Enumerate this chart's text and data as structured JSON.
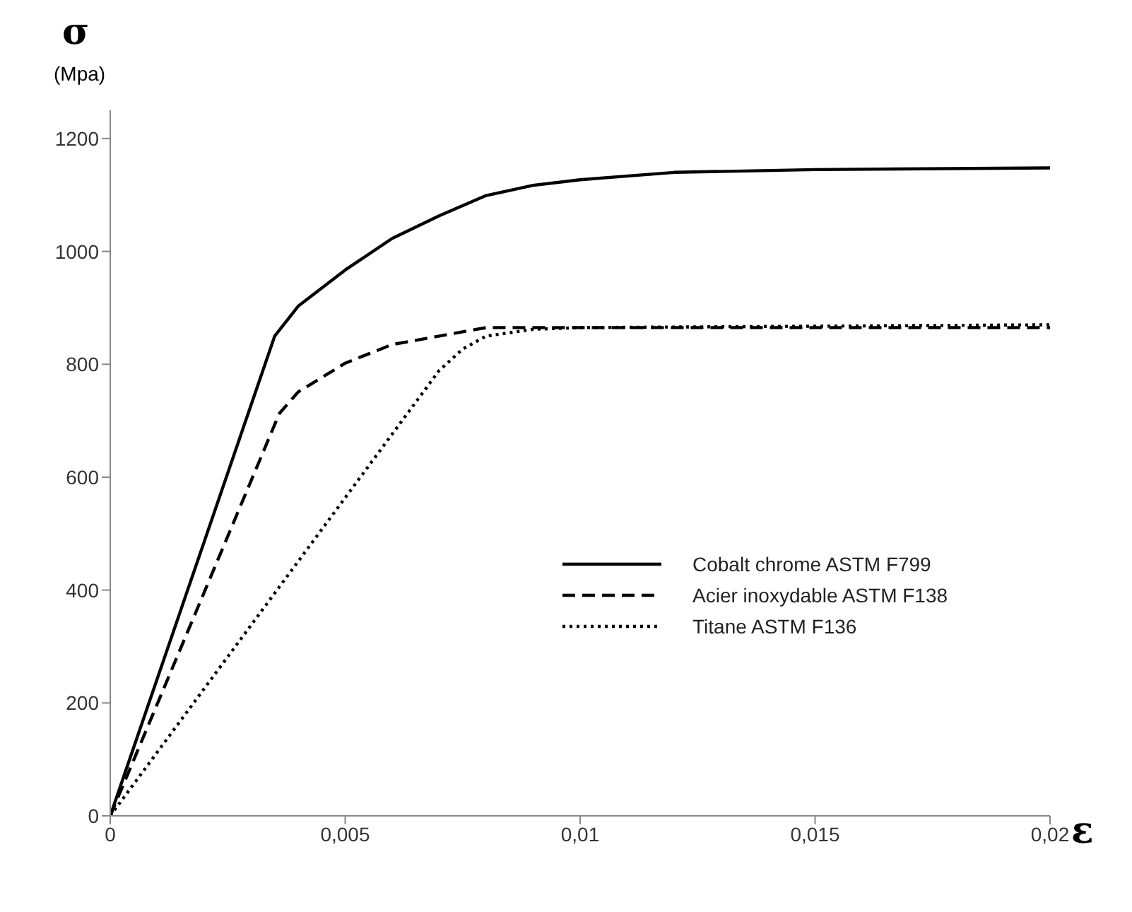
{
  "chart_data": {
    "type": "line",
    "xlabel": "ε",
    "ylabel": "σ (Mpa)",
    "xlim": [
      0,
      0.02
    ],
    "xticks": [
      0,
      {
        "value": 0.005,
        "label": "0,005"
      },
      {
        "value": 0.01,
        "label": "0,01"
      },
      {
        "value": 0.015,
        "label": "0,015"
      },
      {
        "value": 0.02,
        "label": "0,02"
      }
    ],
    "ylim": [
      0,
      1250
    ],
    "yticks": [
      0,
      200,
      400,
      600,
      800,
      1000,
      1200
    ],
    "grid": false,
    "legend": "right",
    "marker": "none",
    "series": [
      {
        "name": "Cobalt chrome ASTM F799",
        "color": "#000000",
        "line_style": "solid",
        "x": [
          0,
          0.0035,
          0.004,
          0.005,
          0.006,
          0.007,
          0.008,
          0.009,
          0.01,
          0.012,
          0.015,
          0.02
        ],
        "values": [
          0,
          850,
          903,
          967,
          1023,
          1063,
          1099,
          1117,
          1127,
          1140,
          1145,
          1148
        ]
      },
      {
        "name": "Acier inoxydable ASTM F138",
        "color": "#000000",
        "line_style": "dashed",
        "x": [
          0,
          0.0036,
          0.004,
          0.005,
          0.006,
          0.007,
          0.008,
          0.01,
          0.02
        ],
        "values": [
          0,
          713,
          751,
          802,
          835,
          850,
          865,
          865,
          865
        ]
      },
      {
        "name": "Titane ASTM F136",
        "color": "#000000",
        "line_style": "dotted",
        "x": [
          0,
          0.007,
          0.0075,
          0.008,
          0.009,
          0.01,
          0.02
        ],
        "values": [
          0,
          789,
          827,
          850,
          862,
          865,
          870
        ]
      }
    ]
  }
}
